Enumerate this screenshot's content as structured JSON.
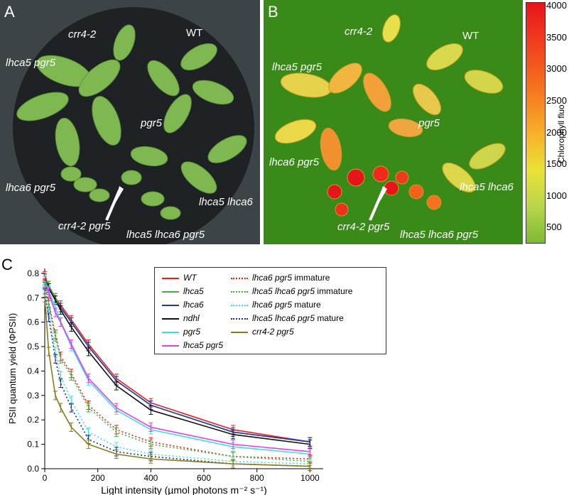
{
  "panels": {
    "a": {
      "letter": "A",
      "labels": {
        "crr4": "crr4-2",
        "wt": "WT",
        "lhca5pgr5": "lhca5 pgr5",
        "pgr5": "pgr5",
        "lhca6pgr5": "lhca6 pgr5",
        "lhca5lhca6": "lhca5 lhca6",
        "crr4pgr5": "crr4-2 pgr5",
        "lhca5lhca6pgr5": "lhca5 lhca6 pgr5"
      }
    },
    "b": {
      "letter": "B",
      "labels": {
        "crr4": "crr4-2",
        "wt": "WT",
        "lhca5pgr5": "lhca5 pgr5",
        "pgr5": "pgr5",
        "lhca6pgr5": "lhca6 pgr5",
        "lhca5lhca6": "lhca5 lhca6",
        "crr4pgr5": "crr4-2 pgr5",
        "lhca5lhca6pgr5": "lhca5 lhca6 pgr5"
      },
      "colorbar": {
        "ticks": [
          "4000",
          "3500",
          "3000",
          "2500",
          "2000",
          "1500",
          "1000",
          "500"
        ],
        "axis_label": "Chlorophyll fluo."
      }
    },
    "c": {
      "letter": "C"
    }
  },
  "chart_data": {
    "type": "line",
    "xlabel": "Light intensity (µmol photons m⁻² s⁻¹)",
    "ylabel": "PSII quantum yield (ΦPSII)",
    "xlim": [
      0,
      1050
    ],
    "ylim": [
      0,
      0.82
    ],
    "xticks": [
      "0",
      "200",
      "400",
      "600",
      "800",
      "1000"
    ],
    "yticks": [
      "0.0",
      "0.1",
      "0.2",
      "0.3",
      "0.4",
      "0.5",
      "0.6",
      "0.7",
      "0.8"
    ],
    "x": [
      0,
      15,
      40,
      60,
      100,
      165,
      270,
      400,
      710,
      1000
    ],
    "series": [
      {
        "name": "WT",
        "suffix": "",
        "color": "#e8201c",
        "dash": "solid",
        "values": [
          0.79,
          0.75,
          0.7,
          0.67,
          0.61,
          0.51,
          0.37,
          0.27,
          0.16,
          0.11
        ]
      },
      {
        "name": "lhca5",
        "suffix": "",
        "color": "#3cb43c",
        "dash": "solid",
        "values": [
          0.78,
          0.75,
          0.7,
          0.66,
          0.6,
          0.5,
          0.36,
          0.26,
          0.15,
          0.11
        ]
      },
      {
        "name": "lhca6",
        "suffix": "",
        "color": "#2638a8",
        "dash": "solid",
        "values": [
          0.78,
          0.74,
          0.69,
          0.66,
          0.6,
          0.5,
          0.36,
          0.26,
          0.15,
          0.11
        ]
      },
      {
        "name": "ndhl",
        "suffix": "",
        "color": "#111111",
        "dash": "solid",
        "values": [
          0.77,
          0.74,
          0.69,
          0.65,
          0.58,
          0.48,
          0.34,
          0.24,
          0.14,
          0.1
        ]
      },
      {
        "name": "pgr5",
        "suffix": "",
        "color": "#3ee0e8",
        "dash": "solid",
        "values": [
          0.77,
          0.73,
          0.66,
          0.6,
          0.5,
          0.36,
          0.24,
          0.16,
          0.09,
          0.06
        ]
      },
      {
        "name": "lhca5 pgr5",
        "suffix": "",
        "color": "#e23ee6",
        "dash": "solid",
        "values": [
          0.76,
          0.72,
          0.64,
          0.6,
          0.51,
          0.37,
          0.25,
          0.17,
          0.1,
          0.07
        ]
      },
      {
        "name": "lhca6 pgr5",
        "suffix": "immature",
        "color": "#e8201c",
        "dash": "dotted",
        "values": [
          0.76,
          0.68,
          0.55,
          0.46,
          0.39,
          0.26,
          0.16,
          0.11,
          0.05,
          0.04
        ]
      },
      {
        "name": "lhca5 lhca6 pgr5",
        "suffix": "immature",
        "color": "#3cb43c",
        "dash": "dotted",
        "values": [
          0.75,
          0.67,
          0.54,
          0.45,
          0.38,
          0.25,
          0.15,
          0.1,
          0.05,
          0.03
        ]
      },
      {
        "name": "lhca6 pgr5",
        "suffix": "mature",
        "color": "#3ee0e8",
        "dash": "dotted",
        "values": [
          0.73,
          0.64,
          0.48,
          0.38,
          0.28,
          0.15,
          0.09,
          0.06,
          0.03,
          0.02
        ]
      },
      {
        "name": "lhca5 lhca6 pgr5",
        "suffix": "mature",
        "color": "#1a2a8a",
        "dash": "dotted",
        "values": [
          0.72,
          0.62,
          0.45,
          0.35,
          0.25,
          0.12,
          0.07,
          0.05,
          0.02,
          0.01
        ]
      },
      {
        "name": "crr4-2 pgr5",
        "suffix": "",
        "color": "#8a7a18",
        "dash": "solid",
        "values": [
          0.7,
          0.48,
          0.3,
          0.25,
          0.17,
          0.1,
          0.06,
          0.04,
          0.02,
          0.01
        ]
      }
    ]
  }
}
